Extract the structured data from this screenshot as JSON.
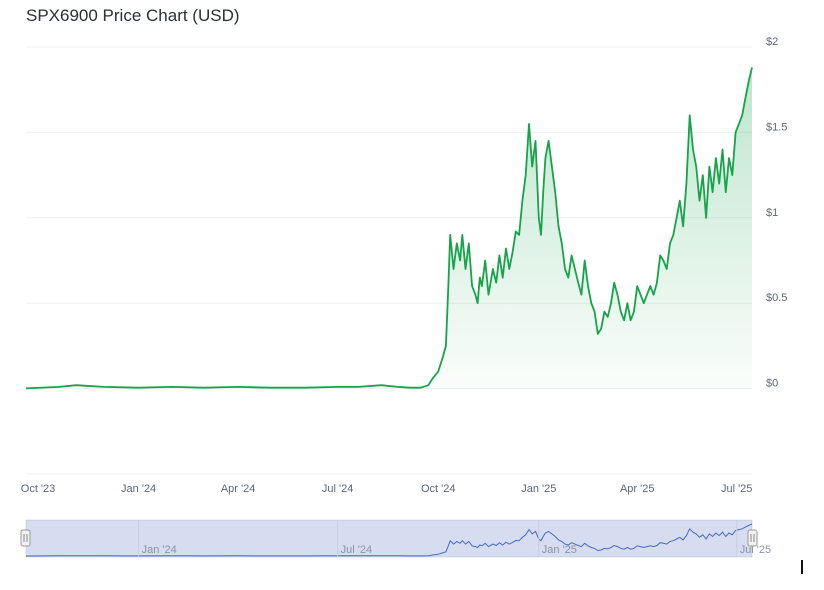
{
  "chart_data": {
    "type": "area",
    "title": "SPX6900 Price Chart (USD)",
    "xlabel": "",
    "ylabel": "",
    "ylim": [
      -0.5,
      2.0
    ],
    "y_ticks": [
      {
        "value": 2.0,
        "label": "$2"
      },
      {
        "value": 1.5,
        "label": "$1.5"
      },
      {
        "value": 1.0,
        "label": "$1"
      },
      {
        "value": 0.5,
        "label": "$0.5"
      },
      {
        "value": 0.0,
        "label": "$0"
      }
    ],
    "x_ticks": [
      {
        "date": "2023-10-01",
        "label": "Oct '23"
      },
      {
        "date": "2024-01-01",
        "label": "Jan '24"
      },
      {
        "date": "2024-04-01",
        "label": "Apr '24"
      },
      {
        "date": "2024-07-01",
        "label": "Jul '24"
      },
      {
        "date": "2024-10-01",
        "label": "Oct '24"
      },
      {
        "date": "2025-01-01",
        "label": "Jan '25"
      },
      {
        "date": "2025-04-01",
        "label": "Apr '25"
      },
      {
        "date": "2025-07-01",
        "label": "Jul '25"
      }
    ],
    "grid": true,
    "line_color": "#16a34a",
    "fill_color": "#16a34a",
    "series": [
      {
        "x": [
          "2023-09-20",
          "2023-10-20",
          "2023-11-05",
          "2023-11-30",
          "2024-01-01",
          "2024-02-01",
          "2024-03-01",
          "2024-04-01",
          "2024-05-01",
          "2024-06-01",
          "2024-07-01",
          "2024-07-20",
          "2024-08-10",
          "2024-08-25",
          "2024-09-05",
          "2024-09-15",
          "2024-09-22",
          "2024-09-26",
          "2024-10-01",
          "2024-10-05",
          "2024-10-08",
          "2024-10-10",
          "2024-10-12",
          "2024-10-15",
          "2024-10-18",
          "2024-10-21",
          "2024-10-23",
          "2024-10-26",
          "2024-10-29",
          "2024-11-01",
          "2024-11-04",
          "2024-11-06",
          "2024-11-08",
          "2024-11-10",
          "2024-11-13",
          "2024-11-16",
          "2024-11-20",
          "2024-11-23",
          "2024-11-26",
          "2024-11-29",
          "2024-12-02",
          "2024-12-05",
          "2024-12-08",
          "2024-12-11",
          "2024-12-14",
          "2024-12-17",
          "2024-12-20",
          "2024-12-23",
          "2024-12-26",
          "2024-12-29",
          "2025-01-01",
          "2025-01-03",
          "2025-01-05",
          "2025-01-07",
          "2025-01-10",
          "2025-01-13",
          "2025-01-16",
          "2025-01-19",
          "2025-01-22",
          "2025-01-25",
          "2025-01-28",
          "2025-01-31",
          "2025-02-03",
          "2025-02-06",
          "2025-02-09",
          "2025-02-12",
          "2025-02-15",
          "2025-02-18",
          "2025-02-21",
          "2025-02-24",
          "2025-02-27",
          "2025-03-02",
          "2025-03-05",
          "2025-03-08",
          "2025-03-11",
          "2025-03-14",
          "2025-03-17",
          "2025-03-20",
          "2025-03-23",
          "2025-03-26",
          "2025-03-29",
          "2025-04-01",
          "2025-04-04",
          "2025-04-07",
          "2025-04-10",
          "2025-04-13",
          "2025-04-16",
          "2025-04-19",
          "2025-04-22",
          "2025-04-25",
          "2025-04-28",
          "2025-05-01",
          "2025-05-04",
          "2025-05-07",
          "2025-05-10",
          "2025-05-13",
          "2025-05-16",
          "2025-05-19",
          "2025-05-22",
          "2025-05-25",
          "2025-05-28",
          "2025-05-31",
          "2025-06-03",
          "2025-06-06",
          "2025-06-09",
          "2025-06-12",
          "2025-06-15",
          "2025-06-18",
          "2025-06-21",
          "2025-06-24",
          "2025-06-27",
          "2025-06-30",
          "2025-07-03",
          "2025-07-06",
          "2025-07-09",
          "2025-07-12",
          "2025-07-15"
        ],
        "values": [
          0.001,
          0.01,
          0.02,
          0.01,
          0.005,
          0.01,
          0.005,
          0.01,
          0.005,
          0.005,
          0.01,
          0.01,
          0.02,
          0.01,
          0.005,
          0.005,
          0.02,
          0.06,
          0.1,
          0.18,
          0.25,
          0.55,
          0.9,
          0.7,
          0.85,
          0.75,
          0.9,
          0.7,
          0.85,
          0.6,
          0.55,
          0.5,
          0.65,
          0.6,
          0.75,
          0.55,
          0.7,
          0.62,
          0.78,
          0.65,
          0.82,
          0.7,
          0.8,
          0.92,
          0.9,
          1.1,
          1.25,
          1.55,
          1.3,
          1.45,
          1.0,
          0.9,
          1.15,
          1.35,
          1.45,
          1.3,
          1.15,
          0.95,
          0.85,
          0.7,
          0.65,
          0.78,
          0.7,
          0.62,
          0.55,
          0.75,
          0.6,
          0.5,
          0.45,
          0.32,
          0.35,
          0.45,
          0.42,
          0.5,
          0.62,
          0.55,
          0.45,
          0.4,
          0.5,
          0.4,
          0.45,
          0.6,
          0.55,
          0.5,
          0.55,
          0.6,
          0.55,
          0.62,
          0.78,
          0.75,
          0.7,
          0.85,
          0.9,
          1.0,
          1.1,
          0.95,
          1.2,
          1.6,
          1.4,
          1.3,
          1.1,
          1.25,
          1.0,
          1.3,
          1.15,
          1.35,
          1.2,
          1.4,
          1.15,
          1.35,
          1.25,
          1.5,
          1.55,
          1.6,
          1.7,
          1.8,
          1.88
        ]
      }
    ],
    "navigator": {
      "x_ticks": [
        {
          "date": "2024-01-01",
          "label": "Jan '24"
        },
        {
          "date": "2024-07-01",
          "label": "Jul '24"
        },
        {
          "date": "2025-01-01",
          "label": "Jan '25"
        },
        {
          "date": "2025-07-01",
          "label": "Jul '25"
        }
      ]
    }
  }
}
